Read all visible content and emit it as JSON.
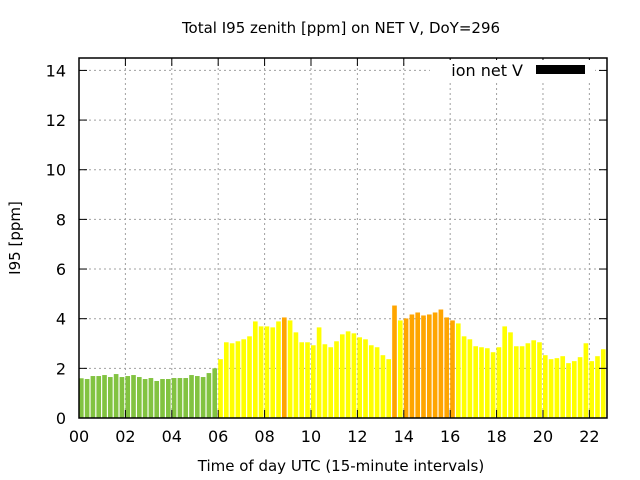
{
  "chart_data": {
    "type": "bar",
    "title": "Total I95 zenith [ppm] on NET V, DoY=296",
    "xlabel": "Time of day UTC (15-minute intervals)",
    "ylabel": "I95 [ppm]",
    "xlim": [
      0,
      22.76
    ],
    "ylim": [
      0,
      14.5
    ],
    "grid": true,
    "x_ticks": [
      0,
      2,
      4,
      6,
      8,
      10,
      12,
      14,
      16,
      18,
      20,
      22
    ],
    "x_tick_labels": [
      "00",
      "02",
      "04",
      "06",
      "08",
      "10",
      "12",
      "14",
      "16",
      "18",
      "20",
      "22"
    ],
    "y_ticks": [
      0,
      2,
      4,
      6,
      8,
      10,
      12,
      14
    ],
    "y_tick_labels": [
      "0",
      "2",
      "4",
      "6",
      "8",
      "10",
      "12",
      "14"
    ],
    "legend": {
      "label": "ion net V",
      "placement": "top-right",
      "color": "#000000"
    },
    "interval_hours": 0.25,
    "colors": {
      "g": "#82c341",
      "y": "#ffff00",
      "o": "#ffa500"
    },
    "values": [
      1.6,
      1.57,
      1.69,
      1.69,
      1.73,
      1.65,
      1.77,
      1.65,
      1.69,
      1.73,
      1.65,
      1.57,
      1.61,
      1.49,
      1.57,
      1.57,
      1.61,
      1.61,
      1.61,
      1.73,
      1.69,
      1.65,
      1.81,
      2.0,
      2.37,
      3.05,
      3.01,
      3.09,
      3.17,
      3.29,
      3.89,
      3.69,
      3.69,
      3.65,
      3.89,
      4.05,
      3.93,
      3.45,
      3.05,
      3.05,
      2.93,
      3.65,
      2.97,
      2.85,
      3.09,
      3.37,
      3.49,
      3.41,
      3.25,
      3.17,
      2.93,
      2.85,
      2.53,
      2.37,
      4.53,
      3.93,
      4.01,
      4.17,
      4.25,
      4.13,
      4.17,
      4.25,
      4.37,
      4.05,
      3.93,
      3.81,
      3.29,
      3.17,
      2.89,
      2.85,
      2.81,
      2.65,
      2.85,
      3.69,
      3.45,
      2.89,
      2.89,
      3.01,
      3.13,
      3.05,
      2.53,
      2.37,
      2.41,
      2.49,
      2.21,
      2.29,
      2.45,
      3.01,
      2.29,
      2.49,
      2.77,
      2.57
    ],
    "value_colors": "ggggggggggggggggggggggggyyyyyyyyyyyoyyyyyyyyyyyyyyyyyyoyoooooooooyyyyyyyyyyyyyyyyyyyyyyyyyyyy"
  }
}
